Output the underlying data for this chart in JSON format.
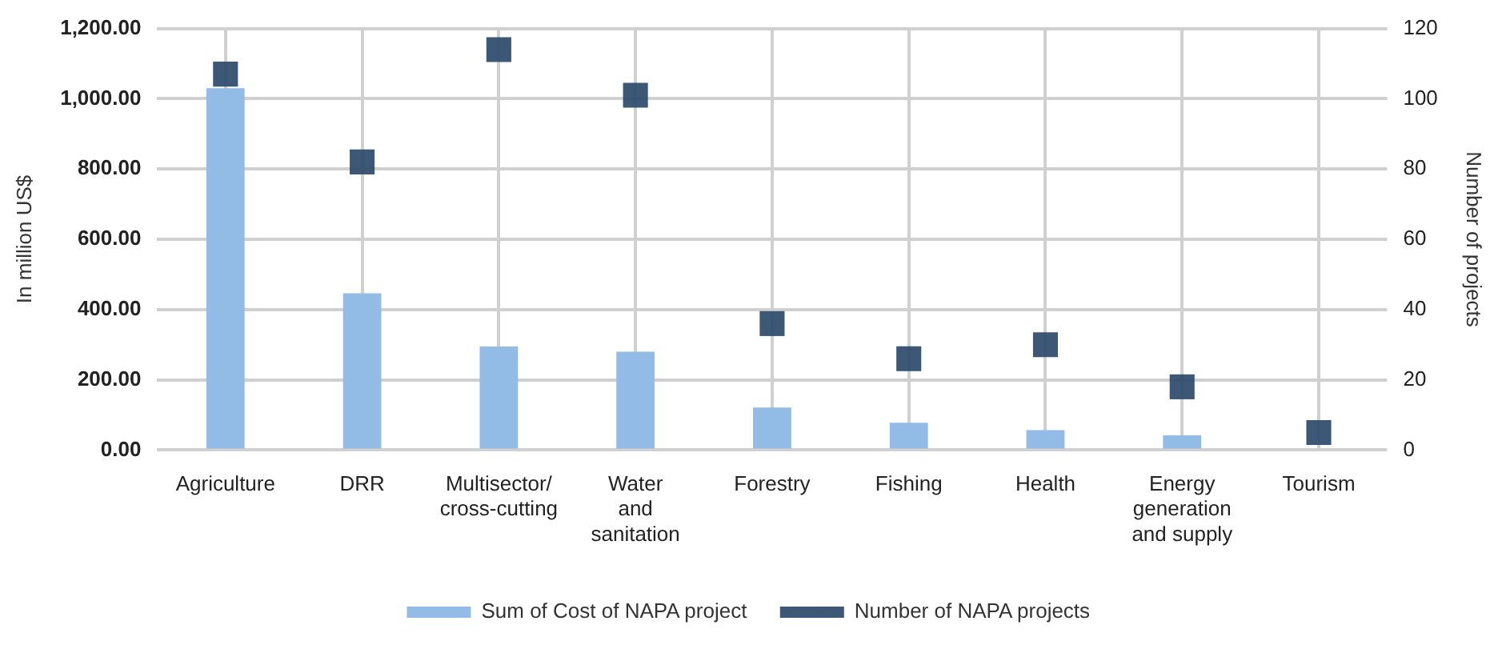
{
  "chart_data": {
    "type": "bar",
    "ylabel": "In million US$",
    "y2label": "Number of projects",
    "categories": [
      "Agriculture",
      "DRR",
      "Multisector/\ncross-cutting",
      "Water\nand\nsanitation",
      "Forestry",
      "Fishing",
      "Health",
      "Energy\ngeneration\nand supply",
      "Tourism"
    ],
    "series": [
      {
        "name": "Sum of Cost of NAPA project",
        "color": "#92bce6",
        "values": [
          1030,
          446,
          295,
          280,
          121,
          78,
          57,
          42,
          null
        ]
      },
      {
        "name": "Number of NAPA projects",
        "type": "scatter",
        "marker": "square",
        "axis": "y2",
        "color": "#2f4b6c",
        "values": [
          107,
          82,
          114,
          101,
          36,
          26,
          30,
          18,
          5
        ]
      }
    ],
    "ylim": [
      0,
      1200
    ],
    "yticks": [
      {
        "value": 0,
        "label": "0.00"
      },
      {
        "value": 200,
        "label": "200.00"
      },
      {
        "value": 400,
        "label": "400.00"
      },
      {
        "value": 600,
        "label": "600.00"
      },
      {
        "value": 800,
        "label": "800.00"
      },
      {
        "value": 1000,
        "label": "1,000.00"
      },
      {
        "value": 1200,
        "label": "1,200.00"
      }
    ],
    "y2lim": [
      0,
      120
    ],
    "y2ticks": [
      0,
      20,
      40,
      60,
      80,
      100,
      120
    ],
    "grid": true,
    "legend": "bottom"
  }
}
